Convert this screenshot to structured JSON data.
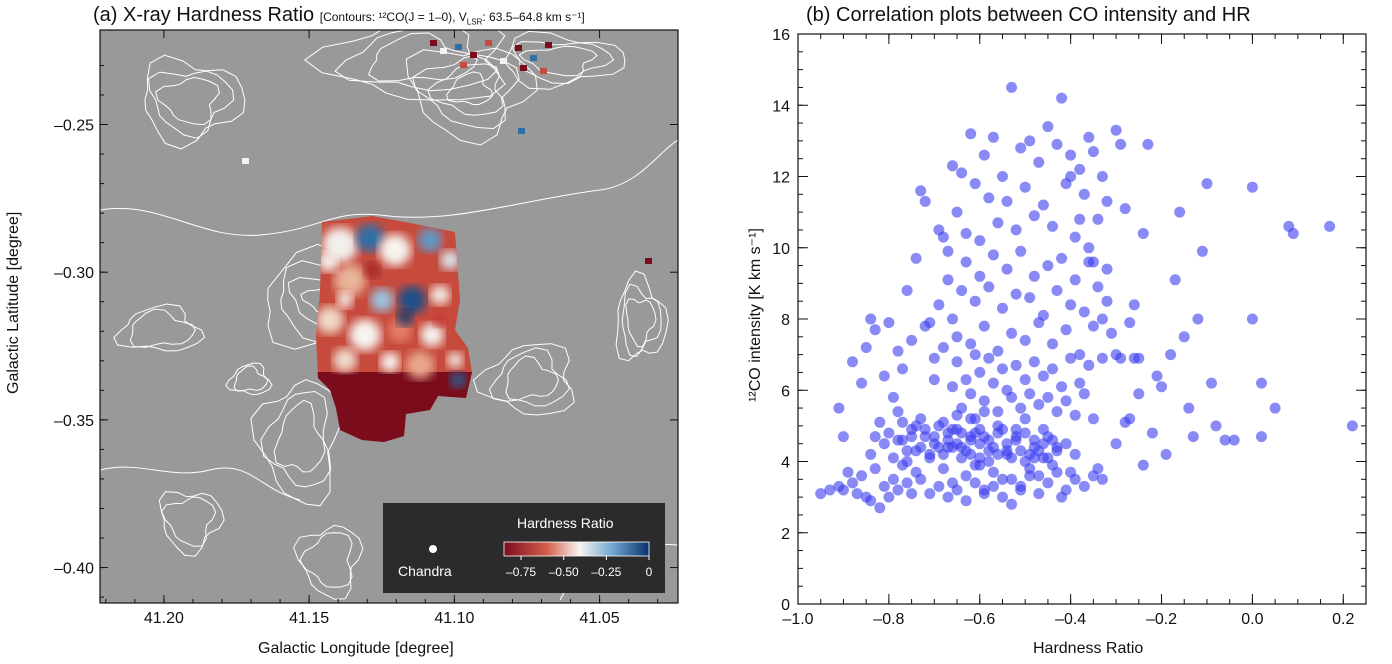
{
  "chart_data": [
    {
      "type": "heatmap",
      "title": "(a) X-ray Hardness Ratio",
      "subtitle_contours": "[Contours: ¹²CO(J = 1–0), V",
      "subtitle_lsr": "LSR",
      "subtitle_range": ": 63.5–64.8 km s⁻¹]",
      "xlabel": "Galactic Longitude [degree]",
      "ylabel": "Galactic Latitude [degree]",
      "xlim": [
        41.222,
        41.023
      ],
      "ylim": [
        -0.412,
        -0.218
      ],
      "xticks": [
        41.2,
        41.15,
        41.1,
        41.05
      ],
      "xtick_labels": [
        "41.20",
        "41.15",
        "41.10",
        "41.05"
      ],
      "yticks": [
        -0.25,
        -0.3,
        -0.35,
        -0.4
      ],
      "ytick_labels": [
        "–0.25",
        "–0.30",
        "–0.35",
        "–0.40"
      ],
      "legend": {
        "colorbar_title": "Hardness Ratio",
        "colorbar_ticks": [
          "–0.75",
          "–0.50",
          "–0.25",
          "0"
        ],
        "colorbar_range": [
          -0.85,
          0
        ],
        "beam_label": "Chandra",
        "placement": "bottom-right"
      },
      "colors": {
        "background": "#999999",
        "low": "#7a0c1c",
        "mid": "#f4f1ee",
        "high": "#0c3a6b",
        "contour": "#ffffff"
      }
    },
    {
      "type": "scatter",
      "title": "(b) Correlation plots between CO intensity and HR",
      "xlabel": "Hardness Ratio",
      "ylabel": "¹²CO intensity [K km s⁻¹]",
      "xlim": [
        -1.0,
        0.25
      ],
      "ylim": [
        0,
        16
      ],
      "xticks": [
        -1.0,
        -0.8,
        -0.6,
        -0.4,
        -0.2,
        0.0,
        0.2
      ],
      "xtick_labels": [
        "–1.0",
        "–0.8",
        "–0.6",
        "–0.4",
        "–0.2",
        "0.0",
        "0.2"
      ],
      "yticks": [
        0,
        2,
        4,
        6,
        8,
        10,
        12,
        14,
        16
      ],
      "ytick_labels": [
        "0",
        "2",
        "4",
        "6",
        "8",
        "10",
        "12",
        "14",
        "16"
      ],
      "point_color": "#3a3cf0",
      "points": [
        [
          -0.95,
          3.1
        ],
        [
          -0.93,
          3.2
        ],
        [
          -0.91,
          3.3
        ],
        [
          -0.9,
          3.2
        ],
        [
          -0.89,
          3.7
        ],
        [
          -0.88,
          3.4
        ],
        [
          -0.87,
          3.1
        ],
        [
          -0.86,
          3.6
        ],
        [
          -0.85,
          3.0
        ],
        [
          -0.84,
          2.9
        ],
        [
          -0.83,
          3.8
        ],
        [
          -0.82,
          2.7
        ],
        [
          -0.81,
          3.3
        ],
        [
          -0.8,
          3.0
        ],
        [
          -0.79,
          3.5
        ],
        [
          -0.78,
          3.2
        ],
        [
          -0.77,
          3.9
        ],
        [
          -0.76,
          3.4
        ],
        [
          -0.75,
          3.1
        ],
        [
          -0.74,
          3.7
        ],
        [
          -0.84,
          4.2
        ],
        [
          -0.83,
          4.7
        ],
        [
          -0.82,
          5.1
        ],
        [
          -0.81,
          4.5
        ],
        [
          -0.8,
          4.8
        ],
        [
          -0.79,
          4.1
        ],
        [
          -0.78,
          5.4
        ],
        [
          -0.77,
          4.6
        ],
        [
          -0.76,
          4.0
        ],
        [
          -0.75,
          4.9
        ],
        [
          -0.74,
          4.3
        ],
        [
          -0.73,
          5.2
        ],
        [
          -0.72,
          4.7
        ],
        [
          -0.71,
          4.1
        ],
        [
          -0.7,
          4.5
        ],
        [
          -0.69,
          5.0
        ],
        [
          -0.68,
          4.2
        ],
        [
          -0.67,
          4.8
        ],
        [
          -0.66,
          4.4
        ],
        [
          -0.65,
          5.3
        ],
        [
          -0.9,
          4.7
        ],
        [
          -0.91,
          5.5
        ],
        [
          -0.88,
          6.8
        ],
        [
          -0.86,
          6.2
        ],
        [
          -0.85,
          7.2
        ],
        [
          -0.84,
          8.0
        ],
        [
          -0.83,
          7.7
        ],
        [
          -0.81,
          6.4
        ],
        [
          -0.8,
          7.9
        ],
        [
          -0.79,
          5.8
        ],
        [
          -0.78,
          7.1
        ],
        [
          -0.77,
          6.6
        ],
        [
          -0.76,
          8.8
        ],
        [
          -0.75,
          7.4
        ],
        [
          -0.74,
          9.7
        ],
        [
          -0.73,
          11.6
        ],
        [
          -0.72,
          11.3
        ],
        [
          -0.71,
          7.9
        ],
        [
          -0.7,
          6.3
        ],
        [
          -0.69,
          10.5
        ],
        [
          -0.68,
          10.3
        ],
        [
          -0.67,
          9.9
        ],
        [
          -0.66,
          12.3
        ],
        [
          -0.65,
          11.0
        ],
        [
          -0.64,
          12.1
        ],
        [
          -0.63,
          10.4
        ],
        [
          -0.62,
          13.2
        ],
        [
          -0.61,
          11.8
        ],
        [
          -0.6,
          10.2
        ],
        [
          -0.59,
          12.6
        ],
        [
          -0.58,
          11.4
        ],
        [
          -0.57,
          13.1
        ],
        [
          -0.56,
          10.7
        ],
        [
          -0.55,
          12.0
        ],
        [
          -0.54,
          11.3
        ],
        [
          -0.53,
          14.5
        ],
        [
          -0.52,
          10.5
        ],
        [
          -0.51,
          12.8
        ],
        [
          -0.5,
          11.7
        ],
        [
          -0.49,
          13.0
        ],
        [
          -0.48,
          10.9
        ],
        [
          -0.47,
          12.4
        ],
        [
          -0.46,
          11.2
        ],
        [
          -0.45,
          13.4
        ],
        [
          -0.44,
          10.6
        ],
        [
          -0.43,
          12.9
        ],
        [
          -0.42,
          14.2
        ],
        [
          -0.41,
          11.8
        ],
        [
          -0.4,
          12.6
        ],
        [
          -0.39,
          10.3
        ],
        [
          -0.38,
          12.2
        ],
        [
          -0.37,
          11.5
        ],
        [
          -0.36,
          13.1
        ],
        [
          -0.35,
          12.7
        ],
        [
          -0.34,
          10.8
        ],
        [
          -0.33,
          12.0
        ],
        [
          -0.32,
          11.3
        ],
        [
          -0.3,
          13.3
        ],
        [
          -0.29,
          12.9
        ],
        [
          -0.28,
          11.1
        ],
        [
          -0.72,
          7.8
        ],
        [
          -0.7,
          6.9
        ],
        [
          -0.69,
          8.4
        ],
        [
          -0.68,
          7.2
        ],
        [
          -0.67,
          9.1
        ],
        [
          -0.66,
          8.0
        ],
        [
          -0.65,
          7.5
        ],
        [
          -0.64,
          8.8
        ],
        [
          -0.63,
          9.6
        ],
        [
          -0.62,
          7.3
        ],
        [
          -0.61,
          8.5
        ],
        [
          -0.6,
          9.2
        ],
        [
          -0.59,
          7.8
        ],
        [
          -0.58,
          8.9
        ],
        [
          -0.57,
          9.8
        ],
        [
          -0.56,
          7.1
        ],
        [
          -0.55,
          8.3
        ],
        [
          -0.54,
          9.4
        ],
        [
          -0.53,
          7.6
        ],
        [
          -0.52,
          8.7
        ],
        [
          -0.51,
          9.9
        ],
        [
          -0.5,
          7.4
        ],
        [
          -0.49,
          8.6
        ],
        [
          -0.48,
          9.2
        ],
        [
          -0.47,
          7.9
        ],
        [
          -0.46,
          8.1
        ],
        [
          -0.45,
          9.5
        ],
        [
          -0.44,
          7.3
        ],
        [
          -0.43,
          8.8
        ],
        [
          -0.42,
          9.7
        ],
        [
          -0.41,
          7.7
        ],
        [
          -0.4,
          8.4
        ],
        [
          -0.39,
          9.1
        ],
        [
          -0.38,
          7.0
        ],
        [
          -0.37,
          8.2
        ],
        [
          -0.36,
          9.6
        ],
        [
          -0.35,
          7.8
        ],
        [
          -0.34,
          8.9
        ],
        [
          -0.33,
          6.9
        ],
        [
          -0.32,
          8.5
        ],
        [
          -0.66,
          6.1
        ],
        [
          -0.65,
          6.8
        ],
        [
          -0.64,
          5.5
        ],
        [
          -0.63,
          6.3
        ],
        [
          -0.62,
          5.9
        ],
        [
          -0.61,
          7.0
        ],
        [
          -0.6,
          6.5
        ],
        [
          -0.59,
          5.7
        ],
        [
          -0.58,
          6.9
        ],
        [
          -0.57,
          6.2
        ],
        [
          -0.56,
          5.4
        ],
        [
          -0.55,
          6.6
        ],
        [
          -0.54,
          6.0
        ],
        [
          -0.53,
          5.8
        ],
        [
          -0.52,
          6.7
        ],
        [
          -0.51,
          5.5
        ],
        [
          -0.5,
          6.3
        ],
        [
          -0.49,
          5.9
        ],
        [
          -0.48,
          6.8
        ],
        [
          -0.47,
          5.6
        ],
        [
          -0.46,
          6.4
        ],
        [
          -0.45,
          5.8
        ],
        [
          -0.44,
          6.6
        ],
        [
          -0.43,
          5.4
        ],
        [
          -0.42,
          6.1
        ],
        [
          -0.41,
          5.7
        ],
        [
          -0.4,
          6.9
        ],
        [
          -0.39,
          5.3
        ],
        [
          -0.38,
          6.2
        ],
        [
          -0.37,
          5.9
        ],
        [
          -0.36,
          6.7
        ],
        [
          -0.35,
          5.2
        ],
        [
          -0.34,
          3.8
        ],
        [
          -0.33,
          3.5
        ],
        [
          -0.3,
          7.0
        ],
        [
          -0.29,
          6.9
        ],
        [
          -0.27,
          5.2
        ],
        [
          -0.26,
          8.4
        ],
        [
          -0.25,
          6.9
        ],
        [
          -0.24,
          3.9
        ],
        [
          -0.68,
          3.8
        ],
        [
          -0.67,
          4.4
        ],
        [
          -0.66,
          3.4
        ],
        [
          -0.65,
          4.9
        ],
        [
          -0.64,
          4.1
        ],
        [
          -0.63,
          3.6
        ],
        [
          -0.62,
          4.7
        ],
        [
          -0.61,
          3.9
        ],
        [
          -0.6,
          4.5
        ],
        [
          -0.59,
          3.2
        ],
        [
          -0.58,
          4.3
        ],
        [
          -0.57,
          3.7
        ],
        [
          -0.56,
          4.8
        ],
        [
          -0.55,
          3.5
        ],
        [
          -0.54,
          4.2
        ],
        [
          -0.53,
          2.8
        ],
        [
          -0.52,
          4.6
        ],
        [
          -0.51,
          3.3
        ],
        [
          -0.5,
          4.0
        ],
        [
          -0.49,
          3.8
        ],
        [
          -0.48,
          4.4
        ],
        [
          -0.47,
          3.6
        ],
        [
          -0.46,
          4.1
        ],
        [
          -0.45,
          4.7
        ],
        [
          -0.44,
          3.9
        ],
        [
          -0.43,
          4.3
        ],
        [
          -0.42,
          3.0
        ],
        [
          -0.41,
          4.5
        ],
        [
          -0.4,
          3.7
        ],
        [
          -0.39,
          4.2
        ],
        [
          -0.64,
          4.4
        ],
        [
          -0.62,
          5.2
        ],
        [
          -0.6,
          3.9
        ],
        [
          -0.58,
          4.6
        ],
        [
          -0.56,
          5.0
        ],
        [
          -0.54,
          4.3
        ],
        [
          -0.52,
          4.9
        ],
        [
          -0.5,
          5.2
        ],
        [
          -0.48,
          4.1
        ],
        [
          -0.46,
          4.9
        ],
        [
          -0.73,
          3.5
        ],
        [
          -0.71,
          3.1
        ],
        [
          -0.69,
          3.3
        ],
        [
          -0.67,
          3.0
        ],
        [
          -0.65,
          3.2
        ],
        [
          -0.63,
          2.9
        ],
        [
          -0.61,
          3.4
        ],
        [
          -0.59,
          3.1
        ],
        [
          -0.57,
          3.3
        ],
        [
          -0.55,
          3.0
        ],
        [
          -0.53,
          3.5
        ],
        [
          -0.51,
          3.2
        ],
        [
          -0.49,
          3.6
        ],
        [
          -0.47,
          3.1
        ],
        [
          -0.45,
          3.4
        ],
        [
          -0.43,
          3.7
        ],
        [
          -0.41,
          3.2
        ],
        [
          -0.39,
          3.5
        ],
        [
          -0.37,
          3.3
        ],
        [
          -0.35,
          3.6
        ],
        [
          -0.24,
          10.4
        ],
        [
          -0.23,
          12.9
        ],
        [
          -0.22,
          4.8
        ],
        [
          -0.21,
          6.4
        ],
        [
          -0.2,
          6.1
        ],
        [
          -0.19,
          4.2
        ],
        [
          -0.18,
          7.0
        ],
        [
          -0.17,
          9.1
        ],
        [
          -0.16,
          11.0
        ],
        [
          -0.15,
          7.5
        ],
        [
          -0.14,
          5.5
        ],
        [
          -0.13,
          4.7
        ],
        [
          -0.12,
          8.0
        ],
        [
          -0.11,
          9.9
        ],
        [
          -0.1,
          11.8
        ],
        [
          -0.09,
          6.2
        ],
        [
          -0.08,
          5.0
        ],
        [
          -0.06,
          4.6
        ],
        [
          -0.04,
          4.6
        ],
        [
          0.0,
          11.7
        ],
        [
          0.0,
          8.0
        ],
        [
          0.02,
          6.2
        ],
        [
          0.02,
          4.7
        ],
        [
          0.05,
          5.5
        ],
        [
          0.08,
          10.6
        ],
        [
          0.09,
          10.4
        ],
        [
          0.17,
          10.6
        ],
        [
          0.22,
          5.0
        ],
        [
          -0.28,
          5.1
        ],
        [
          -0.27,
          7.9
        ],
        [
          -0.26,
          6.9
        ],
        [
          -0.25,
          5.9
        ],
        [
          -0.3,
          4.5
        ],
        [
          -0.31,
          7.6
        ],
        [
          -0.32,
          9.4
        ],
        [
          -0.33,
          8.0
        ],
        [
          -0.35,
          9.6
        ],
        [
          -0.36,
          10.0
        ],
        [
          -0.38,
          10.8
        ],
        [
          -0.4,
          12.0
        ],
        [
          -0.62,
          4.2
        ],
        [
          -0.61,
          4.8
        ],
        [
          -0.6,
          4.1
        ],
        [
          -0.59,
          4.7
        ],
        [
          -0.58,
          4.0
        ],
        [
          -0.57,
          4.4
        ],
        [
          -0.56,
          4.2
        ],
        [
          -0.55,
          4.9
        ],
        [
          -0.54,
          4.5
        ],
        [
          -0.53,
          4.1
        ],
        [
          -0.52,
          4.7
        ],
        [
          -0.51,
          4.3
        ],
        [
          -0.5,
          4.8
        ],
        [
          -0.49,
          4.2
        ],
        [
          -0.48,
          4.6
        ],
        [
          -0.47,
          4.3
        ],
        [
          -0.46,
          4.5
        ],
        [
          -0.45,
          4.1
        ],
        [
          -0.44,
          4.6
        ],
        [
          -0.43,
          4.4
        ],
        [
          -0.78,
          4.6
        ],
        [
          -0.77,
          5.1
        ],
        [
          -0.76,
          4.3
        ],
        [
          -0.75,
          4.7
        ],
        [
          -0.74,
          5.0
        ],
        [
          -0.73,
          4.4
        ],
        [
          -0.72,
          4.9
        ],
        [
          -0.71,
          4.2
        ],
        [
          -0.7,
          4.7
        ],
        [
          -0.69,
          4.4
        ],
        [
          -0.68,
          5.1
        ],
        [
          -0.67,
          4.6
        ],
        [
          -0.66,
          4.9
        ],
        [
          -0.65,
          4.5
        ],
        [
          -0.64,
          4.8
        ],
        [
          -0.63,
          4.3
        ],
        [
          -0.62,
          4.6
        ],
        [
          -0.61,
          5.2
        ],
        [
          -0.6,
          4.9
        ],
        [
          -0.59,
          5.4
        ]
      ]
    }
  ]
}
